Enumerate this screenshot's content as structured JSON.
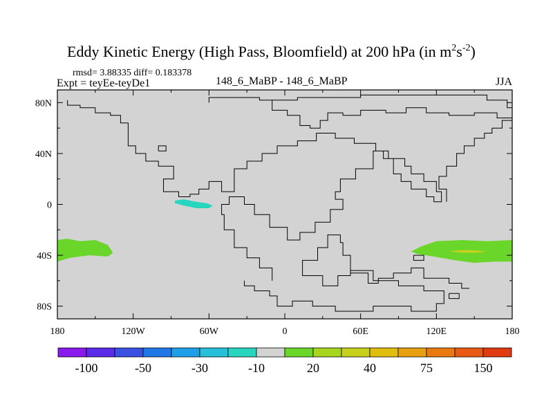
{
  "chart_data": {
    "type": "contour-map",
    "title": "Eddy Kinetic Energy (High Pass, Bloomfield) at 200 hPa (in m",
    "title_unit_exp1": "2",
    "title_unit_mid": "s",
    "title_unit_exp2": "-2",
    "title_unit_end": ")",
    "stats": "rmsd= 3.88335 diff= 0.183378",
    "left_label": "Expt = teyEe-teyDe1",
    "center_label": "148_6_MaBP - 148_6_MaBP",
    "right_label": "JJA",
    "lon_range": [
      -180,
      180
    ],
    "lat_range": [
      -90,
      90
    ],
    "x_ticks": [
      {
        "value": -180,
        "label": "180"
      },
      {
        "value": -120,
        "label": "120W"
      },
      {
        "value": -60,
        "label": "60W"
      },
      {
        "value": 0,
        "label": "0"
      },
      {
        "value": 60,
        "label": "60E"
      },
      {
        "value": 120,
        "label": "120E"
      },
      {
        "value": 180,
        "label": "180"
      }
    ],
    "y_ticks": [
      {
        "value": 80,
        "label": "80N"
      },
      {
        "value": 40,
        "label": "40N"
      },
      {
        "value": 0,
        "label": "0"
      },
      {
        "value": -40,
        "label": "40S"
      },
      {
        "value": -80,
        "label": "80S"
      }
    ],
    "background_color": "#d3d3d3",
    "colorbar": {
      "colors": [
        "#8a1aeb",
        "#5a2be8",
        "#3a50e0",
        "#1f78e6",
        "#1ea0e8",
        "#26c0d8",
        "#28d6c0",
        "#d3d3d3",
        "#6ad62a",
        "#a6d61e",
        "#c8d01e",
        "#e0be10",
        "#e8a010",
        "#e87a10",
        "#e85a14",
        "#e03a10"
      ],
      "labels": [
        {
          "index": 1,
          "text": "-100"
        },
        {
          "index": 3,
          "text": "-50"
        },
        {
          "index": 5,
          "text": "-30"
        },
        {
          "index": 7,
          "text": "-10"
        },
        {
          "index": 9,
          "text": "20"
        },
        {
          "index": 11,
          "text": "40"
        },
        {
          "index": 13,
          "text": "75"
        },
        {
          "index": 15,
          "text": "150"
        }
      ]
    },
    "shaded_regions": [
      {
        "name": "negative-anomaly-equatorial-east-pacific",
        "color": "#28d6c0",
        "outline": [
          [
            -87,
            3
          ],
          [
            -80,
            4
          ],
          [
            -70,
            2
          ],
          [
            -62,
            1
          ],
          [
            -57,
            -1
          ],
          [
            -60,
            -3
          ],
          [
            -70,
            -3
          ],
          [
            -80,
            -1
          ],
          [
            -87,
            1
          ]
        ]
      },
      {
        "name": "positive-anomaly-south-pacific-west",
        "color": "#6ad62a",
        "outline": [
          [
            -180,
            -28
          ],
          [
            -172,
            -27
          ],
          [
            -162,
            -29
          ],
          [
            -150,
            -28
          ],
          [
            -140,
            -32
          ],
          [
            -136,
            -38
          ],
          [
            -140,
            -41
          ],
          [
            -155,
            -40
          ],
          [
            -170,
            -42
          ],
          [
            -180,
            -45
          ]
        ]
      },
      {
        "name": "positive-anomaly-south-indian-ocean",
        "color": "#6ad62a",
        "outline": [
          [
            100,
            -37
          ],
          [
            108,
            -33
          ],
          [
            120,
            -29
          ],
          [
            140,
            -28
          ],
          [
            160,
            -29
          ],
          [
            180,
            -28
          ],
          [
            180,
            -45
          ],
          [
            165,
            -45
          ],
          [
            150,
            -46
          ],
          [
            135,
            -44
          ],
          [
            118,
            -41
          ],
          [
            105,
            -39
          ]
        ]
      },
      {
        "name": "positive-anomaly-core",
        "color": "#c8d01e",
        "outline": [
          [
            130,
            -37
          ],
          [
            138,
            -36
          ],
          [
            148,
            -36
          ],
          [
            160,
            -37
          ],
          [
            152,
            -38
          ],
          [
            140,
            -38
          ]
        ]
      }
    ],
    "continent_outlines": [
      {
        "name": "coastline-north-continent",
        "points": [
          [
            -172,
            82
          ],
          [
            -172,
            78
          ],
          [
            -162,
            78
          ],
          [
            -162,
            76
          ],
          [
            -150,
            76
          ],
          [
            -150,
            72
          ],
          [
            -138,
            72
          ],
          [
            -138,
            70
          ],
          [
            -130,
            70
          ],
          [
            -130,
            64
          ],
          [
            -124,
            64
          ],
          [
            -124,
            46
          ],
          [
            -118,
            46
          ],
          [
            -118,
            40
          ],
          [
            -110,
            40
          ],
          [
            -110,
            34
          ],
          [
            -100,
            34
          ],
          [
            -100,
            30
          ],
          [
            -88,
            30
          ],
          [
            -88,
            20
          ],
          [
            -96,
            20
          ],
          [
            -96,
            10
          ],
          [
            -84,
            10
          ],
          [
            -84,
            6
          ],
          [
            -75,
            6
          ],
          [
            -75,
            8
          ],
          [
            -68,
            8
          ],
          [
            -68,
            12
          ],
          [
            -60,
            12
          ],
          [
            -60,
            18
          ],
          [
            -50,
            18
          ],
          [
            -50,
            10
          ],
          [
            -40,
            10
          ],
          [
            -40,
            28
          ],
          [
            -30,
            28
          ],
          [
            -30,
            34
          ],
          [
            -18,
            34
          ],
          [
            -18,
            40
          ],
          [
            -6,
            40
          ],
          [
            -6,
            46
          ],
          [
            10,
            46
          ],
          [
            10,
            50
          ],
          [
            25,
            50
          ],
          [
            25,
            56
          ],
          [
            40,
            56
          ],
          [
            40,
            52
          ],
          [
            55,
            52
          ],
          [
            55,
            48
          ],
          [
            72,
            48
          ],
          [
            72,
            42
          ],
          [
            82,
            42
          ],
          [
            82,
            36
          ],
          [
            95,
            36
          ],
          [
            95,
            30
          ],
          [
            100,
            30
          ],
          [
            100,
            24
          ],
          [
            110,
            24
          ],
          [
            110,
            18
          ],
          [
            120,
            18
          ],
          [
            120,
            10
          ],
          [
            124,
            10
          ],
          [
            124,
            2
          ],
          [
            118,
            2
          ],
          [
            118,
            6
          ],
          [
            112,
            6
          ],
          [
            112,
            12
          ],
          [
            100,
            12
          ],
          [
            100,
            18
          ],
          [
            92,
            18
          ],
          [
            92,
            24
          ],
          [
            86,
            24
          ],
          [
            86,
            36
          ],
          [
            78,
            36
          ],
          [
            78,
            42
          ],
          [
            70,
            42
          ],
          [
            70,
            28
          ],
          [
            56,
            28
          ],
          [
            56,
            20
          ],
          [
            44,
            20
          ],
          [
            44,
            10
          ],
          [
            40,
            10
          ],
          [
            40,
            4
          ],
          [
            46,
            4
          ],
          [
            46,
            -4
          ],
          [
            36,
            -4
          ],
          [
            36,
            -14
          ],
          [
            24,
            -14
          ],
          [
            24,
            -22
          ],
          [
            12,
            -22
          ],
          [
            12,
            -28
          ],
          [
            2,
            -28
          ],
          [
            2,
            -18
          ],
          [
            -12,
            -18
          ],
          [
            -12,
            -8
          ],
          [
            -24,
            -8
          ],
          [
            -24,
            0
          ],
          [
            -32,
            0
          ],
          [
            -32,
            6
          ],
          [
            -44,
            6
          ],
          [
            -44,
            0
          ],
          [
            -50,
            0
          ],
          [
            -50,
            -8
          ],
          [
            -48,
            -8
          ],
          [
            -48,
            -20
          ],
          [
            -40,
            -20
          ],
          [
            -40,
            -34
          ],
          [
            -30,
            -34
          ],
          [
            -30,
            -42
          ],
          [
            -20,
            -42
          ],
          [
            -20,
            -50
          ],
          [
            -10,
            -50
          ],
          [
            -10,
            -60
          ]
        ]
      },
      {
        "name": "coastline-arctic",
        "points": [
          [
            -60,
            80
          ],
          [
            -60,
            84
          ],
          [
            -20,
            84
          ],
          [
            -20,
            82
          ],
          [
            10,
            82
          ],
          [
            10,
            84
          ],
          [
            60,
            84
          ],
          [
            60,
            86
          ],
          [
            160,
            86
          ],
          [
            160,
            82
          ],
          [
            176,
            82
          ],
          [
            176,
            76
          ],
          [
            180,
            76
          ]
        ]
      },
      {
        "name": "coastline-arctic-rim",
        "points": [
          [
            -10,
            82
          ],
          [
            -10,
            74
          ],
          [
            2,
            74
          ],
          [
            2,
            70
          ],
          [
            12,
            70
          ],
          [
            12,
            62
          ],
          [
            20,
            62
          ],
          [
            20,
            60
          ],
          [
            28,
            60
          ],
          [
            28,
            66
          ],
          [
            34,
            66
          ],
          [
            34,
            72
          ],
          [
            46,
            72
          ],
          [
            46,
            70
          ],
          [
            60,
            70
          ],
          [
            60,
            74
          ],
          [
            80,
            74
          ],
          [
            80,
            72
          ],
          [
            96,
            72
          ],
          [
            96,
            76
          ],
          [
            112,
            76
          ],
          [
            112,
            72
          ],
          [
            130,
            72
          ],
          [
            130,
            70
          ],
          [
            150,
            70
          ],
          [
            150,
            72
          ],
          [
            168,
            72
          ],
          [
            168,
            68
          ],
          [
            180,
            68
          ]
        ]
      },
      {
        "name": "coastline-east-continent",
        "points": [
          [
            180,
            66
          ],
          [
            172,
            66
          ],
          [
            172,
            60
          ],
          [
            164,
            60
          ],
          [
            164,
            56
          ],
          [
            158,
            56
          ],
          [
            158,
            52
          ],
          [
            150,
            52
          ],
          [
            150,
            46
          ],
          [
            142,
            46
          ],
          [
            142,
            40
          ],
          [
            136,
            40
          ],
          [
            136,
            30
          ],
          [
            128,
            30
          ],
          [
            128,
            22
          ],
          [
            122,
            22
          ],
          [
            122,
            12
          ],
          [
            128,
            12
          ],
          [
            128,
            2
          ]
        ]
      },
      {
        "name": "coastline-south-continent",
        "points": [
          [
            -32,
            -60
          ],
          [
            -32,
            -64
          ],
          [
            -24,
            -64
          ],
          [
            -24,
            -68
          ],
          [
            -12,
            -68
          ],
          [
            -12,
            -72
          ],
          [
            -6,
            -72
          ],
          [
            -6,
            -80
          ],
          [
            6,
            -80
          ],
          [
            6,
            -76
          ],
          [
            22,
            -76
          ],
          [
            22,
            -80
          ],
          [
            40,
            -80
          ],
          [
            40,
            -84
          ],
          [
            70,
            -84
          ],
          [
            70,
            -80
          ],
          [
            100,
            -80
          ],
          [
            100,
            -84
          ],
          [
            120,
            -84
          ],
          [
            120,
            -78
          ],
          [
            126,
            -78
          ],
          [
            126,
            -68
          ],
          [
            110,
            -68
          ],
          [
            110,
            -64
          ],
          [
            90,
            -64
          ],
          [
            90,
            -60
          ],
          [
            70,
            -60
          ],
          [
            70,
            -52
          ],
          [
            52,
            -52
          ],
          [
            52,
            -56
          ],
          [
            42,
            -56
          ],
          [
            42,
            -64
          ],
          [
            30,
            -64
          ],
          [
            30,
            -56
          ],
          [
            14,
            -56
          ],
          [
            14,
            -44
          ],
          [
            26,
            -44
          ],
          [
            26,
            -34
          ],
          [
            34,
            -34
          ],
          [
            34,
            -24
          ],
          [
            44,
            -24
          ],
          [
            44,
            -30
          ],
          [
            46,
            -30
          ],
          [
            46,
            -40
          ],
          [
            52,
            -40
          ],
          [
            52,
            -54
          ],
          [
            66,
            -54
          ],
          [
            66,
            -62
          ],
          [
            74,
            -62
          ],
          [
            74,
            -58
          ],
          [
            86,
            -58
          ],
          [
            86,
            -54
          ],
          [
            100,
            -54
          ],
          [
            100,
            -50
          ],
          [
            110,
            -50
          ],
          [
            110,
            -58
          ],
          [
            130,
            -58
          ],
          [
            130,
            -62
          ],
          [
            140,
            -62
          ],
          [
            140,
            -66
          ],
          [
            146,
            -66
          ]
        ]
      },
      {
        "name": "island-western-small",
        "points": [
          [
            -100,
            42
          ],
          [
            -94,
            42
          ],
          [
            -94,
            46
          ],
          [
            -100,
            46
          ],
          [
            -100,
            42
          ]
        ]
      },
      {
        "name": "island-mid-east",
        "points": [
          [
            102,
            -40
          ],
          [
            110,
            -40
          ],
          [
            110,
            -44
          ],
          [
            102,
            -44
          ],
          [
            102,
            -40
          ]
        ]
      },
      {
        "name": "island-far-south",
        "points": [
          [
            130,
            -70
          ],
          [
            138,
            -70
          ],
          [
            138,
            -74
          ],
          [
            130,
            -74
          ],
          [
            130,
            -70
          ]
        ]
      }
    ]
  }
}
